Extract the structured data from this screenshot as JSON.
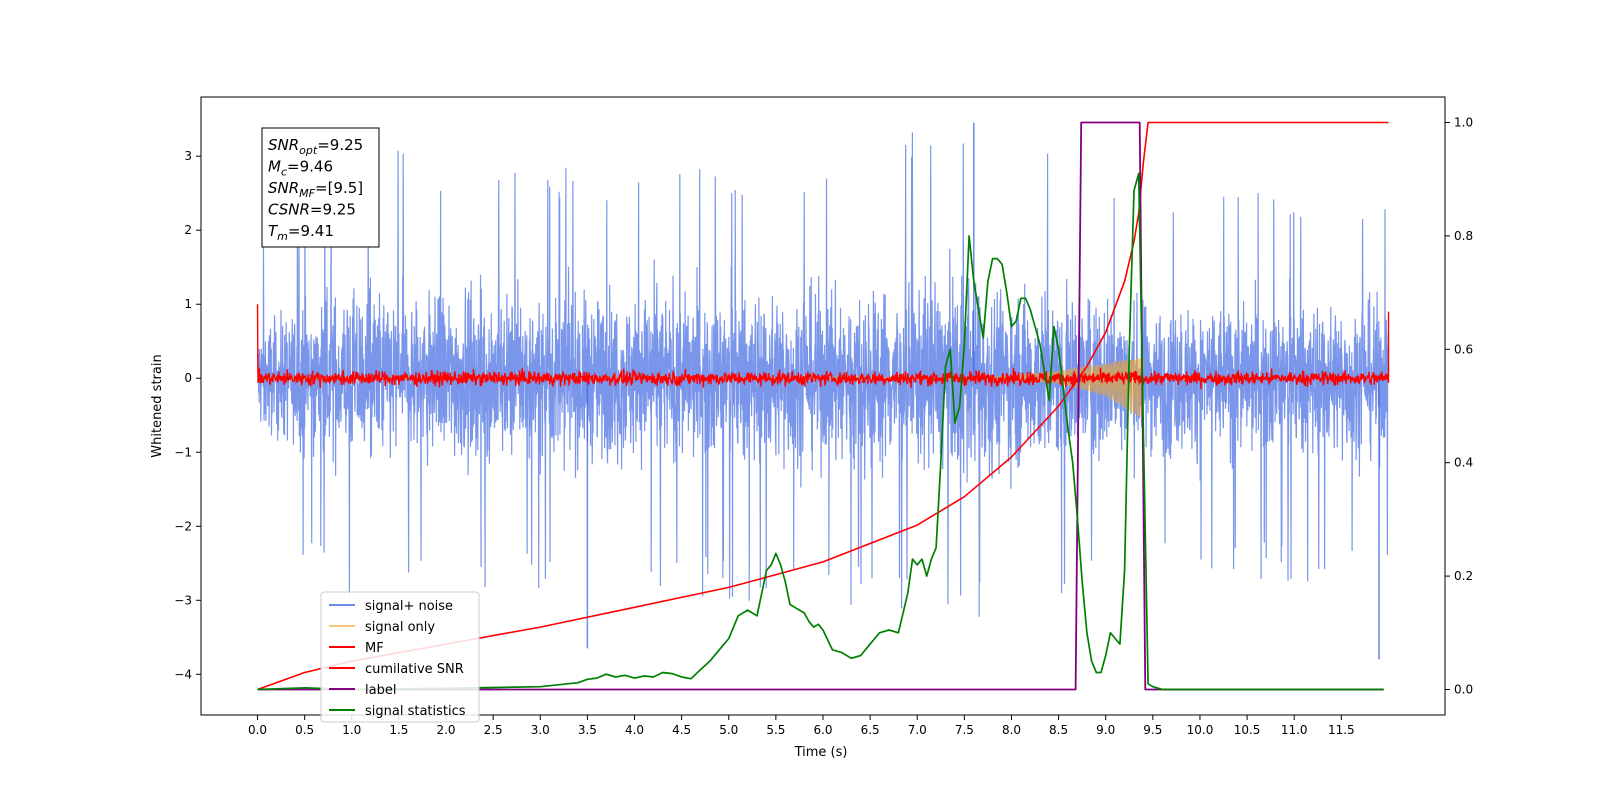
{
  "chart_data": {
    "type": "line",
    "title": "",
    "xlabel": "Time (s)",
    "ylabel": "Whitened strain",
    "xlim": [
      -0.6,
      12.6
    ],
    "ylim": [
      -4.55,
      3.8
    ],
    "y2lim": [
      -0.045,
      1.045
    ],
    "x_ticks": [
      0.0,
      0.5,
      1.0,
      1.5,
      2.0,
      2.5,
      3.0,
      3.5,
      4.0,
      4.5,
      5.0,
      5.5,
      6.0,
      6.5,
      7.0,
      7.5,
      8.0,
      8.5,
      9.0,
      9.5,
      10.0,
      10.5,
      11.0,
      11.5
    ],
    "x_tick_labels": [
      "0.0",
      "0.5",
      "1.0",
      "1.5",
      "2.0",
      "2.5",
      "3.0",
      "3.5",
      "4.0",
      "4.5",
      "5.0",
      "5.5",
      "6.0",
      "6.5",
      "7.0",
      "7.5",
      "8.0",
      "8.5",
      "9.0",
      "9.5",
      "10.0",
      "10.5",
      "11.0",
      "11.5"
    ],
    "y_ticks": [
      3,
      2,
      1,
      0,
      -1,
      -2,
      -3,
      -4
    ],
    "y_tick_labels": [
      "3",
      "2",
      "1",
      "0",
      "−1",
      "−2",
      "−3",
      "−4"
    ],
    "y2_ticks": [
      1.0,
      0.8,
      0.6,
      0.4,
      0.2,
      0.0
    ],
    "y2_tick_labels": [
      "1.0",
      "0.8",
      "0.6",
      "0.4",
      "0.2",
      "0.0"
    ],
    "grid": false,
    "legend_position": "lower-left",
    "series": [
      {
        "name": "signal+ noise",
        "color": "#4169e1",
        "axis": "left",
        "x_range": [
          0.0,
          12.0
        ],
        "envelope": [
          [
            0.0,
            1.8,
            -2.0
          ],
          [
            1.0,
            3.2,
            -3.0
          ],
          [
            3.0,
            2.9,
            -2.9
          ],
          [
            5.0,
            3.0,
            -3.0
          ],
          [
            7.5,
            3.45,
            -3.3
          ],
          [
            9.5,
            2.6,
            -2.7
          ],
          [
            12.0,
            2.7,
            -2.8
          ]
        ],
        "spikes": [
          [
            3.5,
            -3.65
          ],
          [
            7.6,
            3.45
          ],
          [
            11.9,
            -3.8
          ]
        ]
      },
      {
        "name": "signal only",
        "color": "#f5a623",
        "axis": "left",
        "x_range": [
          0.0,
          9.4
        ],
        "envelope": [
          [
            7.8,
            0.02
          ],
          [
            8.5,
            0.1
          ],
          [
            9.0,
            0.25
          ],
          [
            9.4,
            0.55
          ]
        ]
      },
      {
        "name": "MF",
        "color": "#ff0000",
        "axis": "left",
        "x_range": [
          0.0,
          12.0
        ],
        "amplitude": 0.15,
        "edge_values": [
          [
            0.0,
            1.0
          ],
          [
            12.0,
            0.9
          ]
        ]
      },
      {
        "name": "cumilative SNR",
        "color": "#ff0000",
        "axis": "right",
        "x": [
          0.0,
          0.5,
          1.0,
          2.0,
          3.0,
          4.0,
          5.0,
          6.0,
          7.0,
          7.5,
          8.0,
          8.5,
          8.8,
          9.0,
          9.2,
          9.3,
          9.35,
          9.4,
          9.45,
          12.0
        ],
        "y": [
          0.0,
          0.03,
          0.05,
          0.08,
          0.11,
          0.145,
          0.18,
          0.225,
          0.29,
          0.34,
          0.41,
          0.5,
          0.57,
          0.63,
          0.72,
          0.79,
          0.84,
          0.93,
          1.0,
          1.0
        ]
      },
      {
        "name": "label",
        "color": "#800080",
        "axis": "right",
        "x": [
          0.0,
          8.68,
          8.74,
          9.36,
          9.42,
          11.95
        ],
        "y": [
          0.0,
          0.0,
          1.0,
          1.0,
          0.0,
          0.0
        ]
      },
      {
        "name": "signal statistics",
        "color": "#008000",
        "axis": "right",
        "x": [
          0.0,
          0.5,
          1.0,
          2.0,
          3.0,
          3.4,
          3.5,
          3.6,
          3.7,
          3.8,
          3.9,
          4.0,
          4.1,
          4.2,
          4.3,
          4.4,
          4.5,
          4.6,
          4.7,
          4.8,
          4.9,
          5.0,
          5.1,
          5.2,
          5.3,
          5.4,
          5.45,
          5.5,
          5.55,
          5.6,
          5.65,
          5.7,
          5.75,
          5.8,
          5.85,
          5.9,
          5.95,
          6.0,
          6.1,
          6.2,
          6.3,
          6.4,
          6.5,
          6.6,
          6.7,
          6.8,
          6.9,
          6.95,
          7.0,
          7.05,
          7.1,
          7.15,
          7.2,
          7.25,
          7.3,
          7.35,
          7.4,
          7.45,
          7.5,
          7.55,
          7.6,
          7.65,
          7.7,
          7.75,
          7.8,
          7.85,
          7.9,
          7.95,
          8.0,
          8.05,
          8.1,
          8.15,
          8.2,
          8.3,
          8.4,
          8.45,
          8.5,
          8.55,
          8.6,
          8.65,
          8.7,
          8.75,
          8.8,
          8.85,
          8.9,
          8.95,
          9.0,
          9.05,
          9.1,
          9.15,
          9.2,
          9.25,
          9.3,
          9.35,
          9.4,
          9.45,
          9.5,
          9.6,
          10.0,
          11.0,
          11.95
        ],
        "y": [
          0.0,
          0.003,
          0.0,
          0.002,
          0.005,
          0.012,
          0.018,
          0.02,
          0.027,
          0.022,
          0.025,
          0.02,
          0.024,
          0.022,
          0.03,
          0.028,
          0.022,
          0.019,
          0.035,
          0.05,
          0.07,
          0.09,
          0.13,
          0.14,
          0.13,
          0.21,
          0.22,
          0.24,
          0.22,
          0.19,
          0.15,
          0.145,
          0.14,
          0.135,
          0.12,
          0.11,
          0.115,
          0.105,
          0.07,
          0.065,
          0.055,
          0.06,
          0.08,
          0.1,
          0.105,
          0.1,
          0.17,
          0.23,
          0.22,
          0.23,
          0.2,
          0.23,
          0.25,
          0.4,
          0.57,
          0.6,
          0.47,
          0.5,
          0.61,
          0.8,
          0.72,
          0.67,
          0.62,
          0.72,
          0.76,
          0.76,
          0.75,
          0.7,
          0.64,
          0.65,
          0.69,
          0.69,
          0.67,
          0.61,
          0.51,
          0.64,
          0.6,
          0.53,
          0.46,
          0.4,
          0.3,
          0.19,
          0.1,
          0.05,
          0.03,
          0.03,
          0.06,
          0.1,
          0.09,
          0.08,
          0.21,
          0.6,
          0.88,
          0.91,
          0.45,
          0.01,
          0.005,
          0.0,
          0.0,
          0.0,
          0.0
        ]
      }
    ],
    "info_box": [
      {
        "sym": "SNR",
        "sub": "opt",
        "val": "=9.25"
      },
      {
        "sym": "M",
        "sub": "c",
        "val": "=9.46"
      },
      {
        "sym": "SNR",
        "sub": "MF",
        "val": "=[9.5]"
      },
      {
        "sym": "CSNR",
        "sub": "",
        "val": "=9.25"
      },
      {
        "sym": "T",
        "sub": "m",
        "val": "=9.41"
      }
    ]
  },
  "legend": {
    "entries": [
      {
        "label": "signal+ noise",
        "color": "#6d8ce8"
      },
      {
        "label": "signal only",
        "color": "#f8c878"
      },
      {
        "label": "MF",
        "color": "#ff0000"
      },
      {
        "label": "cumilative SNR",
        "color": "#ff0000"
      },
      {
        "label": "label",
        "color": "#800080"
      },
      {
        "label": "signal statistics",
        "color": "#008000"
      }
    ]
  }
}
